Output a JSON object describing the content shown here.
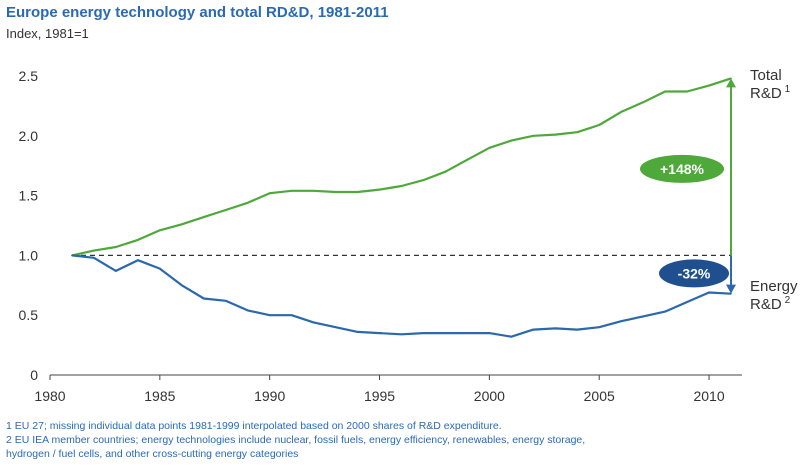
{
  "chart_data": {
    "type": "line",
    "title": "Europe  energy technology and total RD&D, 1981-2011",
    "subtitle": "Index, 1981=1",
    "x": [
      1981,
      1982,
      1983,
      1984,
      1985,
      1986,
      1987,
      1988,
      1989,
      1990,
      1991,
      1992,
      1993,
      1994,
      1995,
      1996,
      1997,
      1998,
      1999,
      2000,
      2001,
      2002,
      2003,
      2004,
      2005,
      2006,
      2007,
      2008,
      2009,
      2010,
      2011
    ],
    "series": [
      {
        "name": "Total R&D",
        "name_sup": "1",
        "color": "#4ea83a",
        "values": [
          1.0,
          1.04,
          1.07,
          1.13,
          1.21,
          1.26,
          1.32,
          1.38,
          1.44,
          1.52,
          1.54,
          1.54,
          1.53,
          1.53,
          1.55,
          1.58,
          1.63,
          1.7,
          1.8,
          1.9,
          1.96,
          2.0,
          2.01,
          2.03,
          2.09,
          2.2,
          2.28,
          2.37,
          2.37,
          2.42,
          2.48
        ]
      },
      {
        "name": "Energy R&D",
        "name_sup": "2",
        "color": "#2b68ac",
        "values": [
          1.0,
          0.98,
          0.87,
          0.96,
          0.89,
          0.75,
          0.64,
          0.62,
          0.54,
          0.5,
          0.5,
          0.44,
          0.4,
          0.36,
          0.35,
          0.34,
          0.35,
          0.35,
          0.35,
          0.35,
          0.32,
          0.38,
          0.39,
          0.38,
          0.4,
          0.45,
          0.49,
          0.53,
          0.61,
          0.69,
          0.68
        ]
      }
    ],
    "x_ticks": [
      1980,
      1985,
      1990,
      1995,
      2000,
      2005,
      2010
    ],
    "y_ticks": [
      "0",
      "0.5",
      "1.0",
      "1.5",
      "2.0",
      "2.5"
    ],
    "xlim": [
      1980,
      2011.5
    ],
    "ylim": [
      0,
      2.5
    ],
    "reference_line": 1.0,
    "annotations": [
      {
        "text": "+148%",
        "color": "#4ea83a"
      },
      {
        "text": "-32%",
        "color": "#1f4f8f"
      }
    ],
    "grid": false
  },
  "footnotes": [
    "1 EU 27; missing individual data points 1981-1999 interpolated based on 2000 shares of R&D expenditure.",
    "2 EU IEA member countries; energy technologies include nuclear, fossil fuels, energy efficiency, renewables, energy storage,",
    "hydrogen / fuel cells, and other cross-cutting energy categories"
  ]
}
